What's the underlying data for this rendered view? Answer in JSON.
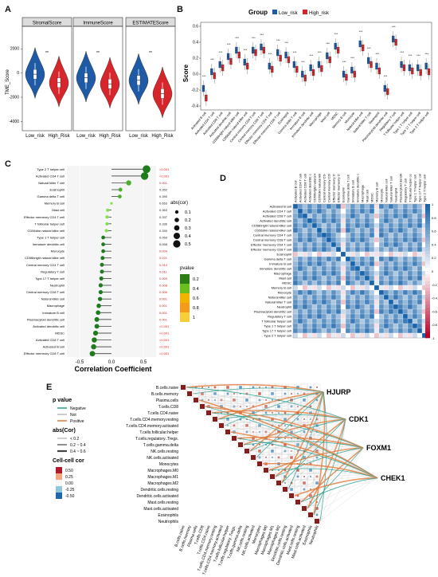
{
  "panels": {
    "A": {
      "letter": "A",
      "ylabel": "TME_Score",
      "yticks": [
        "2000",
        "0",
        "-2000",
        "-4000"
      ],
      "xticklabels": [
        "Low_risk",
        "High_Risk"
      ],
      "facets": [
        {
          "title": "StromalScore",
          "sig": "**"
        },
        {
          "title": "ImmuneScore",
          "sig": "**"
        },
        {
          "title": "ESTIMATEScore",
          "sig": "**"
        }
      ]
    },
    "B": {
      "letter": "B",
      "legend_title": "Group",
      "legend_items": [
        "Low_risk",
        "High_risk"
      ],
      "ylabel": "Score",
      "yticks": [
        "0.6",
        "0.4",
        "0.2",
        "0.0",
        "-0.2",
        "-0.4"
      ]
    },
    "C": {
      "letter": "C",
      "xlabel": "Correlation Coefficient",
      "xticks": [
        "-0.5",
        "0.0",
        "0.5"
      ],
      "size_legend_title": "abs(cor)",
      "size_legend_items": [
        "0.1",
        "0.2",
        "0.3",
        "0.4",
        "0.5"
      ],
      "pvalue_legend_title": "pvalue",
      "pvalue_legend_items": [
        "0.2",
        "0.4",
        "0.6",
        "0.8",
        "1"
      ]
    },
    "D": {
      "letter": "D",
      "colorbar_ticks": [
        "1",
        "0.8",
        "0.6",
        "0.4",
        "0.2",
        "0",
        "-0.2",
        "-0.4",
        "-0.6",
        "-0.8",
        "-1"
      ]
    },
    "E": {
      "letter": "E",
      "pvalue_legend_title": "p value",
      "pvalue_legend_items": [
        "Negative",
        "Not",
        "Positive"
      ],
      "abscor_legend_title": "abs(Cor)",
      "abscor_legend_items": [
        "< 0.2",
        "0.2 ~ 0.4",
        "0.4 ~ 0.6"
      ],
      "cellcor_legend_title": "Cell-cell cor",
      "cellcor_ticks": [
        "0.50",
        "0.25",
        "0.00",
        "-0.25",
        "-0.50"
      ],
      "genes": [
        "HJURP",
        "CDK1",
        "FOXM1",
        "CHEK1"
      ],
      "cells": [
        "B.cells.naive",
        "B.cells.memory",
        "Plasma.cells",
        "T.cells.CD8",
        "T.cells.CD4.naive",
        "T.cells.CD4.memory.resting",
        "T.cells.CD4.memory.activated",
        "T.cells.follicular.helper",
        "T.cells.regulatory..Tregs.",
        "T.cells.gamma.delta",
        "NK.cells.resting",
        "NK.cells.activated",
        "Monocytes",
        "Macrophages.M0",
        "Macrophages.M1",
        "Macrophages.M2",
        "Dendritic.cells.resting",
        "Dendritic.cells.activated",
        "Mast.cells.resting",
        "Mast.cells.activated",
        "Eosinophils",
        "Neutrophils"
      ]
    }
  },
  "colors": {
    "low": "#1f5aa6",
    "high": "#d7262b",
    "green": "#1e7b1e",
    "lightgreen": "#7ee24a",
    "pos_red": "#e63232",
    "ns_black": "#222222"
  },
  "chart_data": [
    {
      "type": "violin",
      "facets": [
        "StromalScore",
        "ImmuneScore",
        "ESTIMATEScore"
      ],
      "categories": [
        "Low_risk",
        "High_Risk"
      ],
      "series": [
        {
          "name": "Low_risk",
          "medians": [
            -100,
            -400,
            -600
          ]
        },
        {
          "name": "High_Risk",
          "medians": [
            -800,
            -900,
            -1700
          ]
        }
      ],
      "ylabel": "TME_Score",
      "ylim": [
        -4500,
        3000
      ]
    },
    {
      "type": "box",
      "categories": [
        "Activated B cell",
        "Activated CD4 T cell",
        "Activated CD8 T cell",
        "Activated dendritic cell",
        "CD56bright natural killer cell",
        "CD56dim natural killer cell",
        "Central memory CD4 T cell",
        "Central memory CD8 T cell",
        "Effector memeory CD4 T cell",
        "Effector memeory CD8 T cell",
        "Eosinophil",
        "Gamma delta T cell",
        "Immature B cell",
        "Immature dendritic cell",
        "Macrophage",
        "Mast cell",
        "MDSC",
        "Memory B cell",
        "Monocyte",
        "Natural killer cell",
        "Natural killer T cell",
        "Neutrophil",
        "Plasmacytoid dendritic cell",
        "Regulatory T cell",
        "T follicular helper cell",
        "Type 1 T helper cell",
        "Type 17 T helper cell",
        "Type 2 T helper cell"
      ],
      "series": [
        {
          "name": "Low_risk",
          "medians": [
            -0.18,
            0.03,
            0.12,
            0.22,
            0.3,
            0.15,
            0.3,
            0.34,
            0.1,
            0.27,
            0.24,
            0.12,
            0.0,
            0.08,
            0.12,
            0.23,
            0.35,
            0.0,
            0.05,
            0.38,
            0.17,
            0.1,
            -0.18,
            0.44,
            0.12,
            0.08,
            0.08,
            0.1
          ]
        },
        {
          "name": "High_risk",
          "medians": [
            -0.3,
            -0.02,
            0.08,
            0.16,
            0.24,
            0.1,
            0.27,
            0.3,
            0.06,
            0.2,
            0.18,
            0.06,
            -0.05,
            0.02,
            0.07,
            0.18,
            0.3,
            -0.04,
            0.0,
            0.33,
            0.12,
            0.04,
            -0.22,
            0.4,
            0.08,
            0.04,
            0.02,
            0.03
          ]
        }
      ],
      "ylabel": "Score",
      "ylim": [
        -0.45,
        0.65
      ]
    },
    {
      "type": "lollipop",
      "categories": [
        "Type 2 T helper cell",
        "Activated CD4 T cell",
        "Natural killer T cell",
        "Eosinophil",
        "Gamma delta T cell",
        "Memory B cell",
        "Mast cell",
        "Effector memeory CD4 T cell",
        "T follicular helper cell",
        "CD56dim natural killer cell",
        "Type 1 T helper cell",
        "Immature dendritic cell",
        "Monocyte",
        "CD56bright natural killer cell",
        "Central memory CD4 T cell",
        "Regulatory T cell",
        "Type 17 T helper cell",
        "Neutrophil",
        "Central memory CD8 T cell",
        "Natural killer cell",
        "Macrophage",
        "Immature B cell",
        "Plasmacytoid dendritic cell",
        "Activated dendritic cell",
        "MDSC",
        "Activated CD8 T cell",
        "Activated B cell",
        "Effector memeory CD8 T cell"
      ],
      "values": [
        0.55,
        0.52,
        0.27,
        0.14,
        0.13,
        0.0,
        -0.06,
        -0.07,
        -0.07,
        -0.08,
        -0.13,
        -0.13,
        -0.13,
        -0.14,
        -0.15,
        -0.15,
        -0.16,
        -0.17,
        -0.17,
        -0.18,
        -0.2,
        -0.21,
        -0.23,
        -0.23,
        -0.25,
        -0.27,
        -0.28,
        -0.3
      ],
      "pvalues": [
        "<0.001",
        "<0.001",
        "0.001",
        "0.352",
        "0.390",
        "0.653",
        "0.363",
        "0.337",
        "0.336",
        "0.330",
        "0.059",
        "0.058",
        "0.034",
        "0.021",
        "0.014",
        "0.011",
        "0.009",
        "0.008",
        "0.006",
        "0.001",
        "0.001",
        "0.001",
        "0.001",
        "<0.001",
        "<0.001",
        "<0.001",
        "<0.001",
        "<0.001"
      ],
      "xlabel": "Correlation Coefficient",
      "xlim": [
        -0.7,
        0.7
      ]
    },
    {
      "type": "heatmap",
      "categories": [
        "Activated B cell",
        "Activated CD4 T cell",
        "Activated CD8 T cell",
        "Activated dendritic cell",
        "CD56bright natural killer cell",
        "CD56dim natural killer cell",
        "Central memory CD4 T cell",
        "Central memory CD8 T cell",
        "Effector memeory CD4 T cell",
        "Effector memeory CD8 T cell",
        "Eosinophil",
        "Gamma delta T cell",
        "Immature B cell",
        "Immature dendritic cell",
        "Macrophage",
        "Mast cell",
        "MDSC",
        "Memory B cell",
        "Monocyte",
        "Natural killer cell",
        "Natural killer T cell",
        "Neutrophil",
        "Plasmacytoid dendritic cell",
        "Regulatory T cell",
        "T follicular helper cell",
        "Type 1 T helper cell",
        "Type 17 T helper cell",
        "Type 2 T helper cell"
      ],
      "value_range": [
        -1,
        1
      ]
    },
    {
      "type": "network-heatmap",
      "genes": [
        "HJURP",
        "CDK1",
        "FOXM1",
        "CHEK1"
      ],
      "value_range": [
        -0.5,
        0.5
      ]
    }
  ]
}
